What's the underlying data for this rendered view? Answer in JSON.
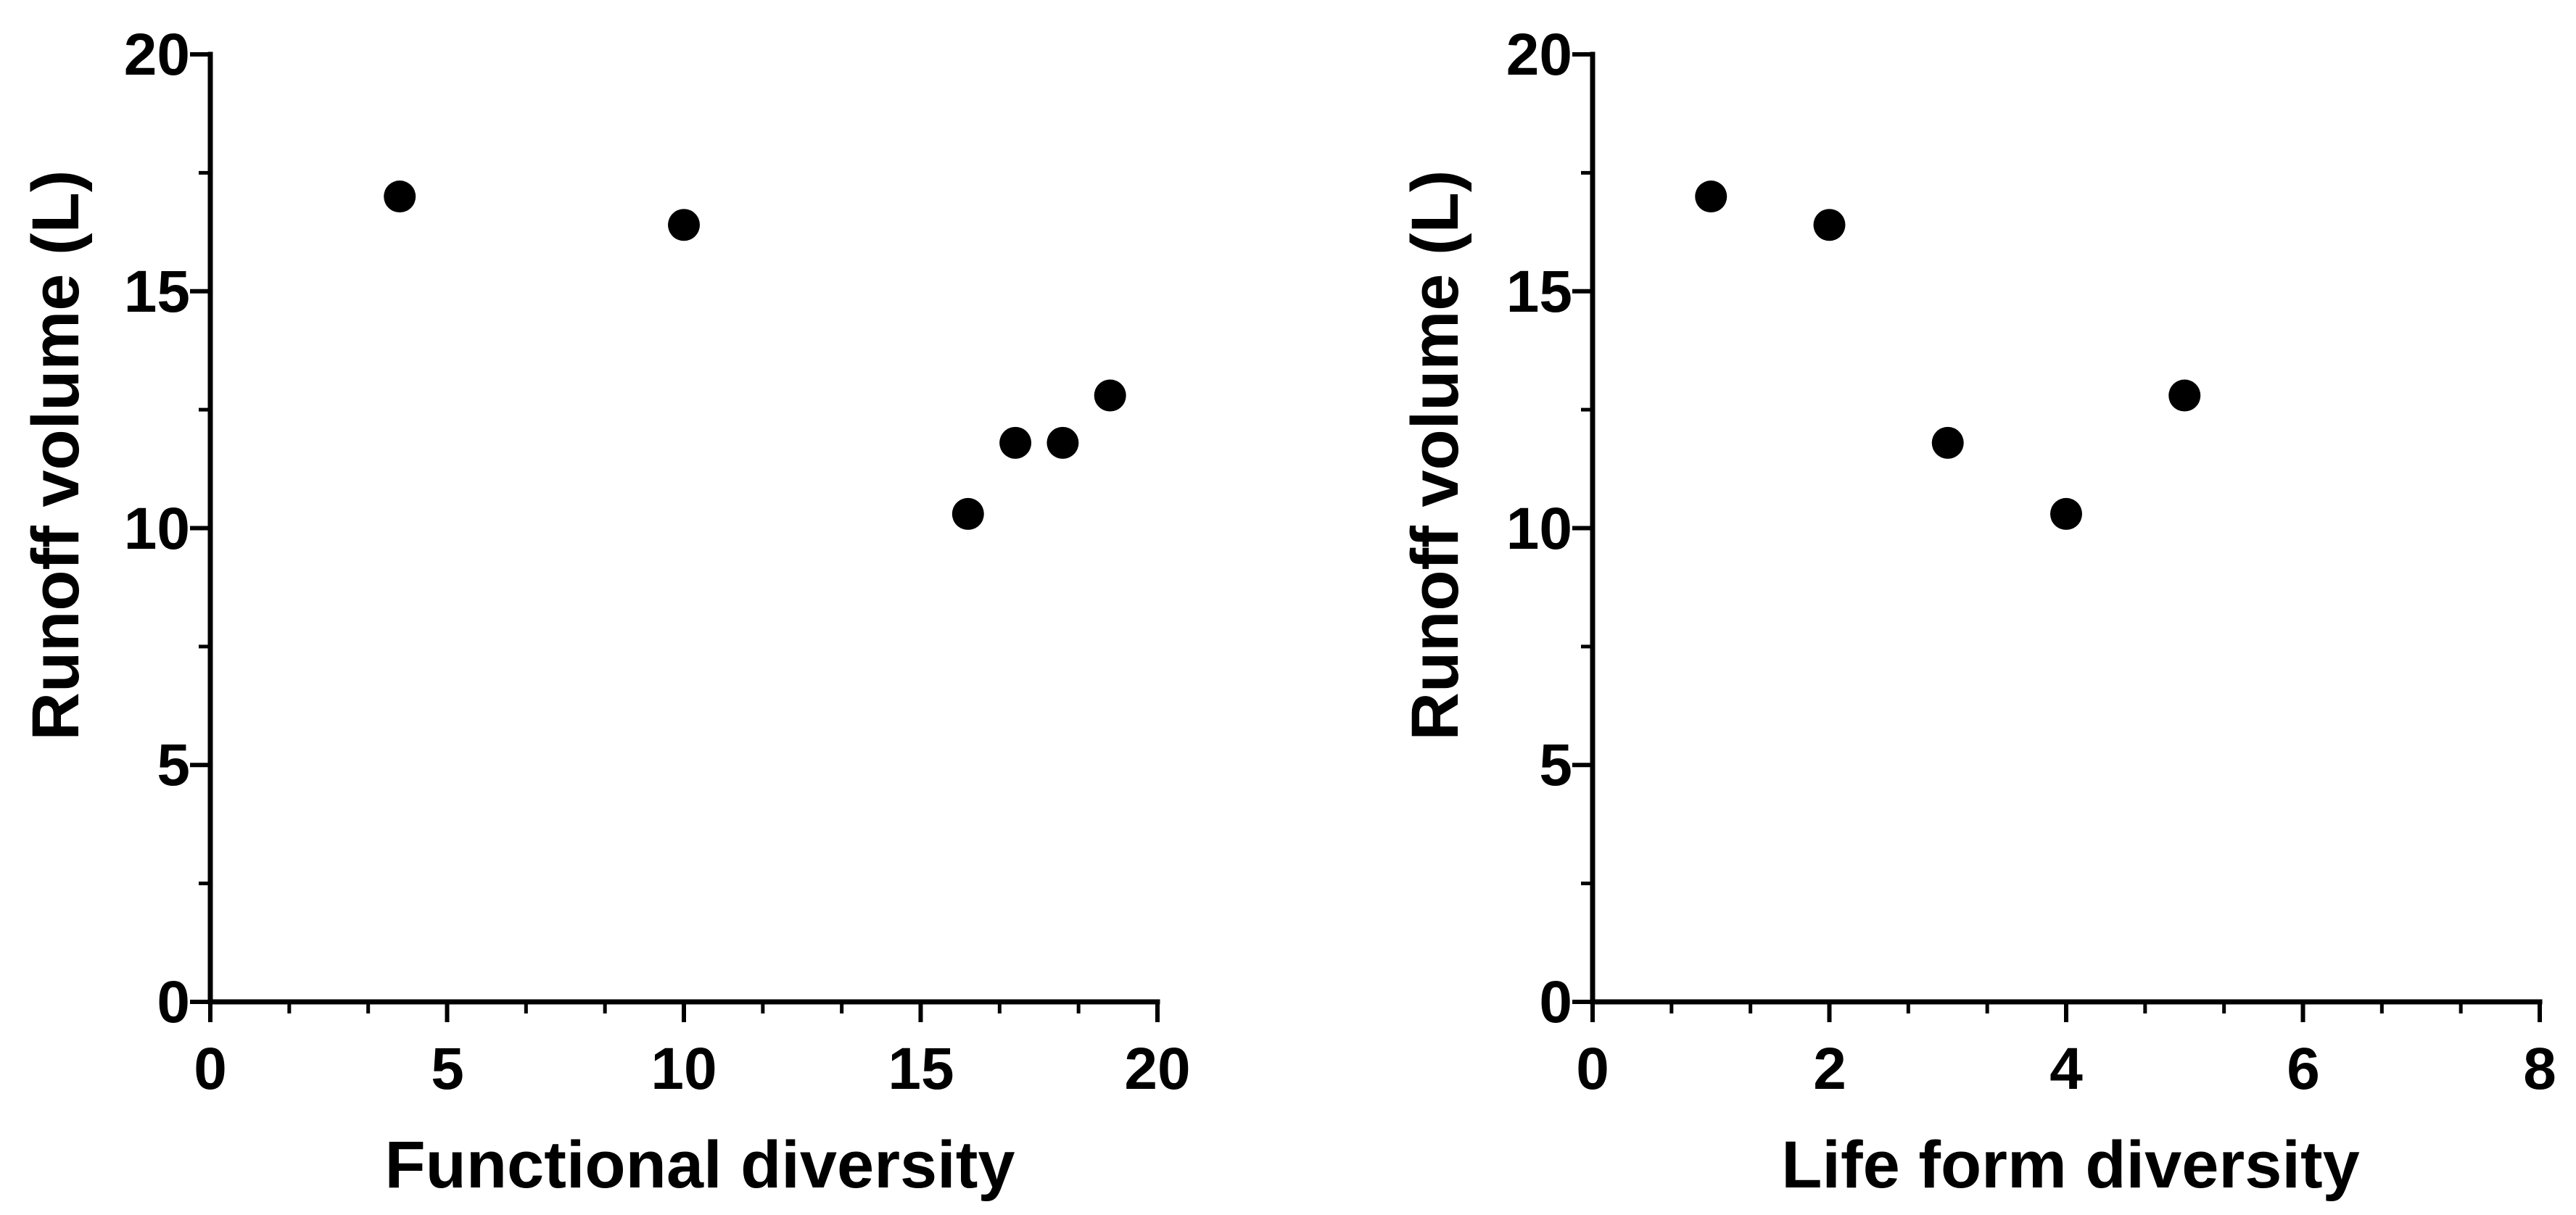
{
  "chart_data": [
    {
      "type": "scatter",
      "title": "",
      "xlabel": "Functional diversity",
      "ylabel": "Runoff volume (L)",
      "xlim": [
        0,
        20
      ],
      "ylim": [
        0,
        20
      ],
      "xticks": [
        "0",
        "5",
        "10",
        "15",
        "20"
      ],
      "yticks": [
        "0",
        "5",
        "10",
        "15",
        "20"
      ],
      "grid": false,
      "legend": "none",
      "series": [
        {
          "name": "Runoff volume",
          "points": [
            {
              "x": 4,
              "y": 17.0
            },
            {
              "x": 10,
              "y": 16.4
            },
            {
              "x": 16,
              "y": 10.3
            },
            {
              "x": 17,
              "y": 11.8
            },
            {
              "x": 18,
              "y": 11.8
            },
            {
              "x": 19,
              "y": 12.8
            }
          ]
        }
      ]
    },
    {
      "type": "scatter",
      "title": "",
      "xlabel": "Life form diversity",
      "ylabel": "Runoff volume (L)",
      "xlim": [
        0,
        8
      ],
      "ylim": [
        0,
        20
      ],
      "xticks": [
        "0",
        "2",
        "4",
        "6",
        "8"
      ],
      "yticks": [
        "0",
        "5",
        "10",
        "15",
        "20"
      ],
      "grid": false,
      "legend": "none",
      "series": [
        {
          "name": "Runoff volume",
          "points": [
            {
              "x": 1,
              "y": 17.0
            },
            {
              "x": 2,
              "y": 16.4
            },
            {
              "x": 3,
              "y": 11.8
            },
            {
              "x": 4,
              "y": 10.3
            },
            {
              "x": 5,
              "y": 12.8
            }
          ]
        }
      ]
    }
  ]
}
